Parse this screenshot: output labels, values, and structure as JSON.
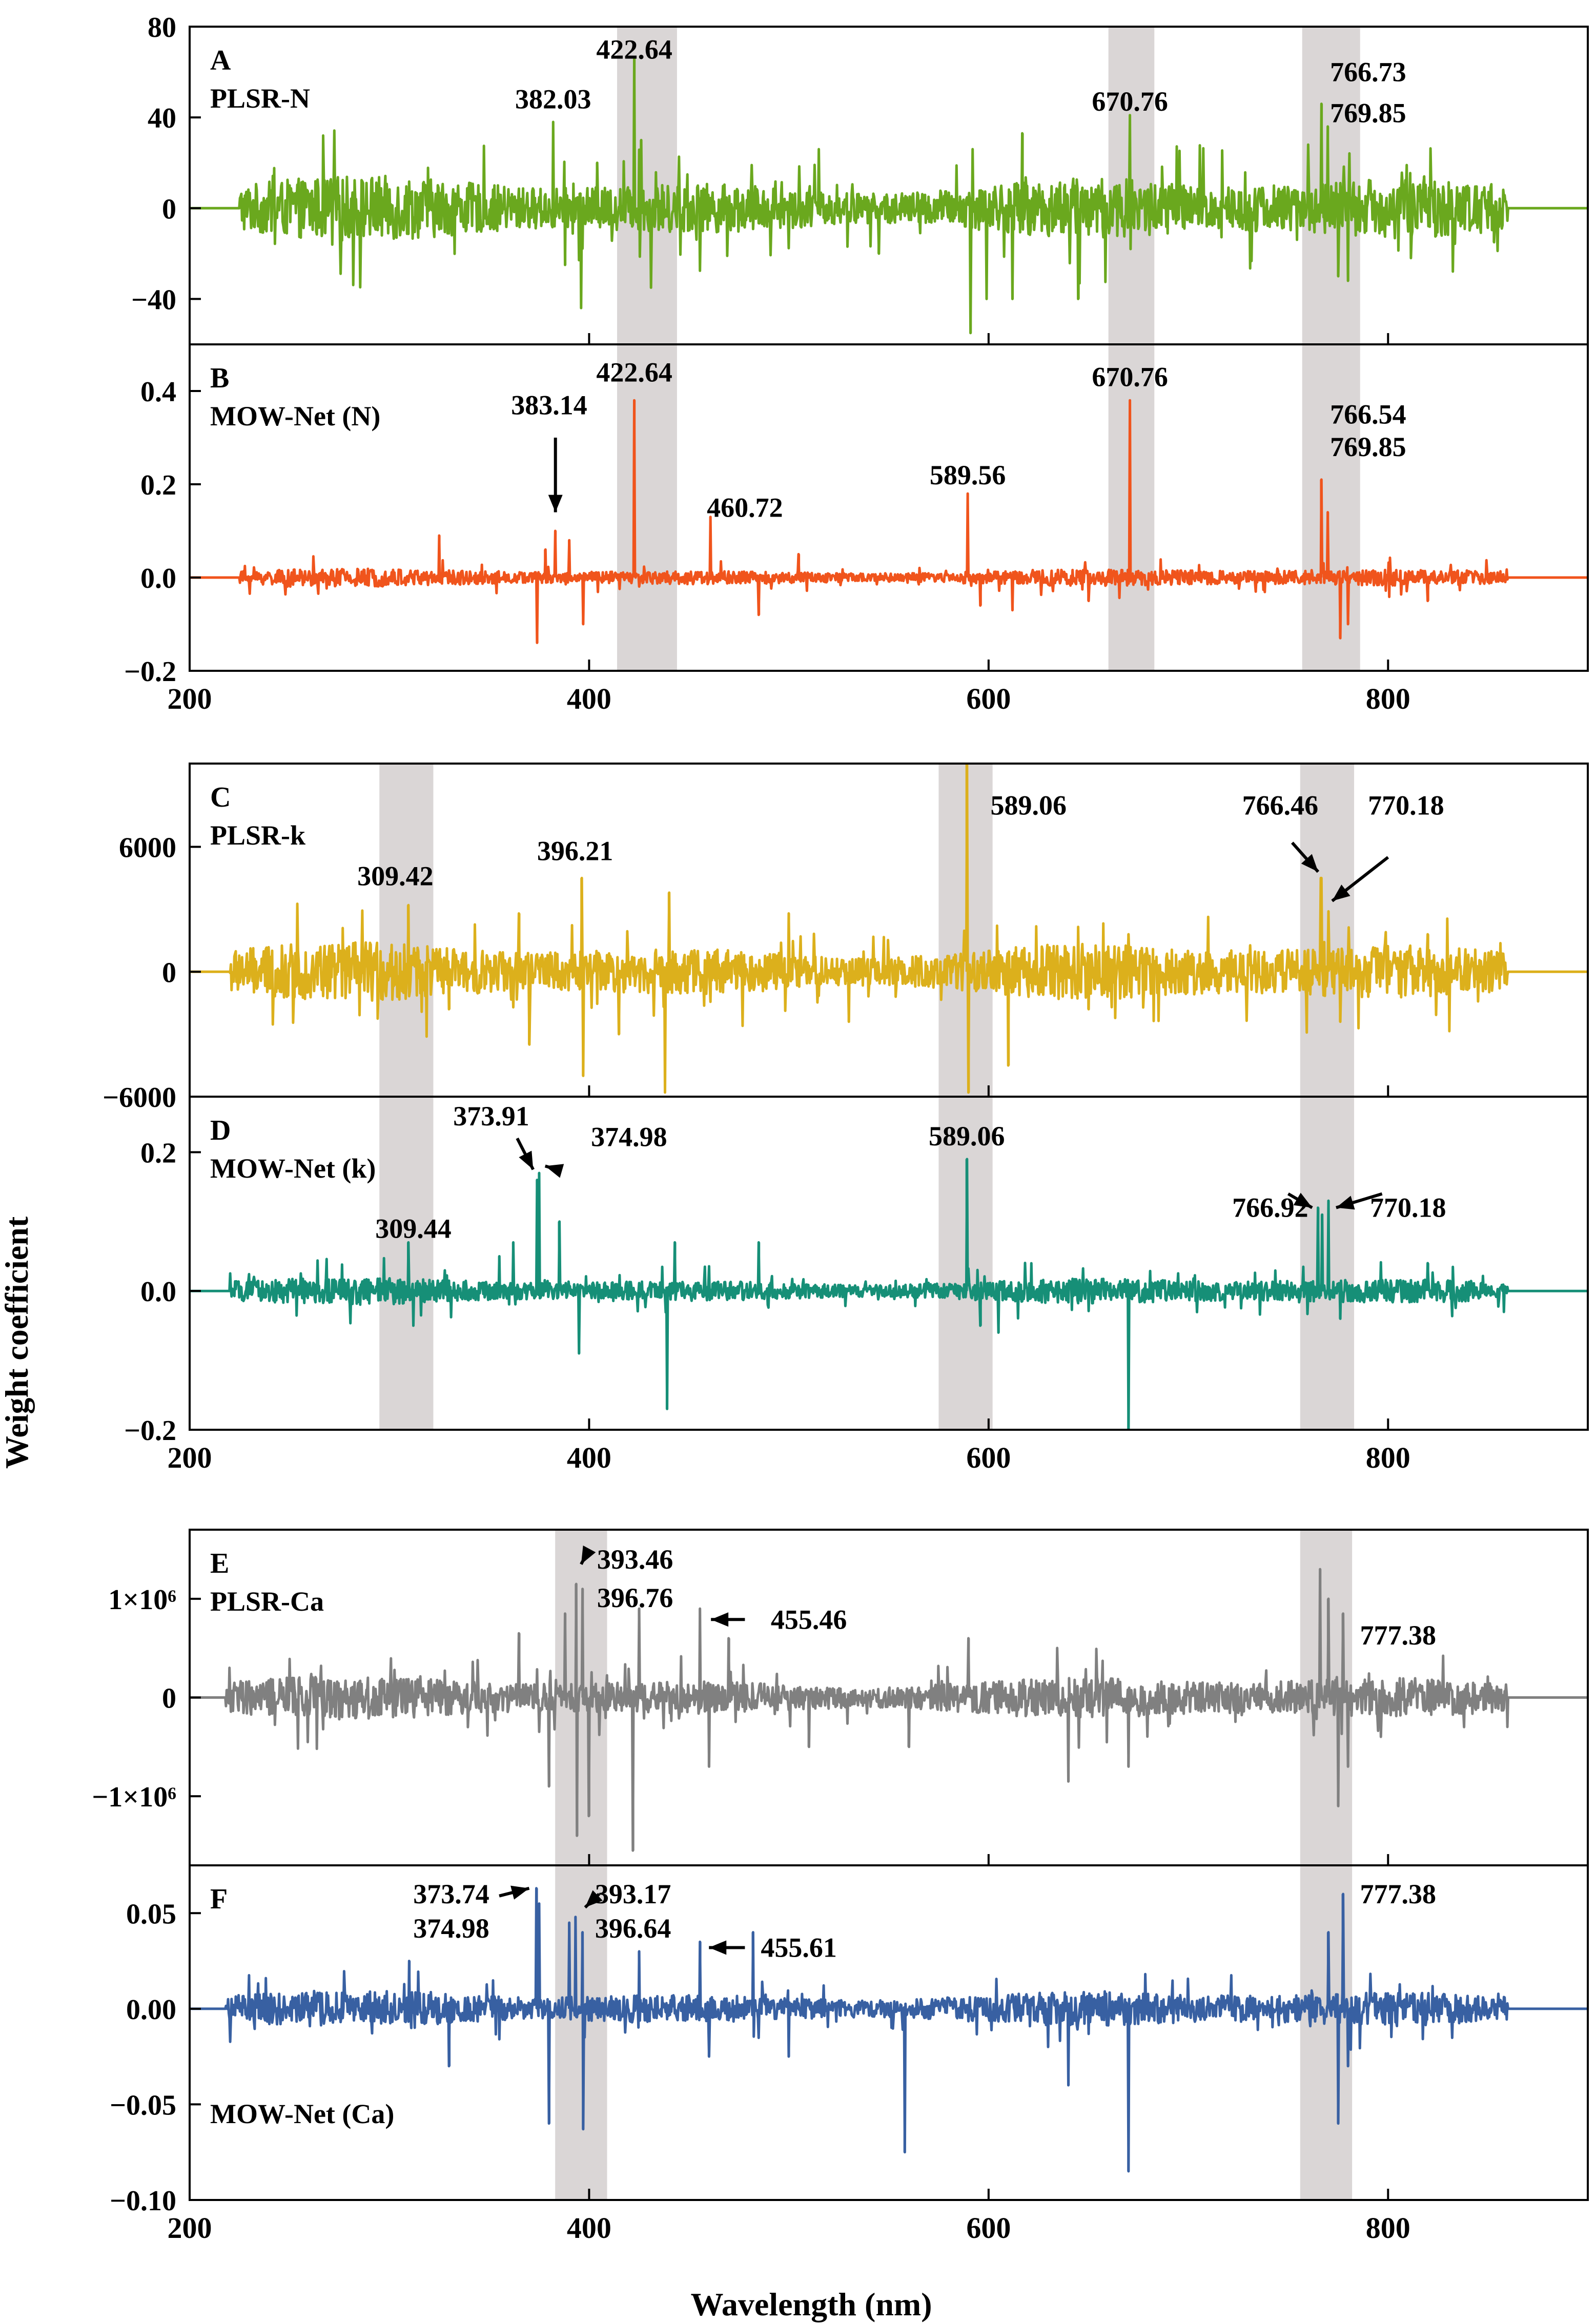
{
  "figure": {
    "ylabel": "Weight coefficient",
    "xlabel": "Wavelength (nm)"
  },
  "chart_data": [
    {
      "type": "line",
      "id": "A",
      "label": "A",
      "title": "PLSR-N",
      "color": "#6aa81e",
      "xlim": [
        200,
        900
      ],
      "ylim": [
        -60,
        80
      ],
      "yticks": [
        -40,
        0,
        40,
        80
      ],
      "ytick_labels": [
        "−40",
        "0",
        "40",
        "80"
      ],
      "xticks": [
        200,
        400,
        600,
        800
      ],
      "xtick_labels": [
        "200",
        "400",
        "600",
        "800"
      ],
      "show_x_tick_labels": false,
      "amp": 9,
      "flat_from": 225,
      "flat_to": 860,
      "peaks": [
        [
          382,
          38
        ],
        [
          388,
          -25
        ],
        [
          396,
          -44
        ],
        [
          404,
          20
        ],
        [
          422.64,
          66
        ],
        [
          426,
          30
        ],
        [
          431,
          -35
        ],
        [
          515,
          26
        ],
        [
          545,
          -20
        ],
        [
          592,
          26
        ],
        [
          591,
          -55
        ],
        [
          599,
          -40
        ],
        [
          612,
          -40
        ],
        [
          617,
          33
        ],
        [
          645,
          -40
        ],
        [
          670.76,
          41
        ],
        [
          760,
          28
        ],
        [
          766.73,
          46
        ],
        [
          769.85,
          36
        ],
        [
          775,
          -30
        ],
        [
          780,
          -32
        ],
        [
          818,
          14
        ],
        [
          853,
          -15
        ]
      ],
      "highlights": [
        [
          414,
          444
        ],
        [
          660,
          683
        ],
        [
          757,
          786
        ]
      ],
      "annotations": [
        {
          "text": "382.03",
          "x": 382,
          "y": 48
        },
        {
          "text": "422.64",
          "x": 422.64,
          "y": 70
        },
        {
          "text": "670.76",
          "x": 670.76,
          "y": 47
        },
        {
          "text": "766.73",
          "x": 790,
          "y": 60
        },
        {
          "text": "769.85",
          "x": 790,
          "y": 42
        }
      ],
      "arrows": []
    },
    {
      "type": "line",
      "id": "B",
      "label": "B",
      "title": "MOW-Net (N)",
      "color": "#f0541c",
      "xlim": [
        200,
        900
      ],
      "ylim": [
        -0.2,
        0.5
      ],
      "yticks": [
        -0.2,
        0.0,
        0.2,
        0.4
      ],
      "ytick_labels": [
        "−0.2",
        "0.0",
        "0.2",
        "0.4"
      ],
      "xticks": [
        200,
        400,
        600,
        800
      ],
      "xtick_labels": [
        "200",
        "400",
        "600",
        "800"
      ],
      "show_x_tick_labels": true,
      "amp": 0.012,
      "flat_from": 225,
      "flat_to": 860,
      "peaks": [
        [
          325,
          0.09
        ],
        [
          374,
          -0.14
        ],
        [
          378,
          0.06
        ],
        [
          383.14,
          0.1
        ],
        [
          390,
          0.08
        ],
        [
          397,
          -0.1
        ],
        [
          422.64,
          0.38
        ],
        [
          460.72,
          0.13
        ],
        [
          485,
          -0.08
        ],
        [
          505,
          0.05
        ],
        [
          589.56,
          0.18
        ],
        [
          596,
          -0.06
        ],
        [
          612,
          -0.07
        ],
        [
          650,
          -0.05
        ],
        [
          670.76,
          0.38
        ],
        [
          766.54,
          0.21
        ],
        [
          769.85,
          0.14
        ],
        [
          776,
          -0.13
        ],
        [
          780,
          -0.1
        ],
        [
          820,
          -0.05
        ]
      ],
      "highlights": [
        [
          414,
          444
        ],
        [
          660,
          683
        ],
        [
          757,
          786
        ]
      ],
      "annotations": [
        {
          "text": "383.14",
          "x": 380,
          "y": 0.37
        },
        {
          "text": "422.64",
          "x": 422.64,
          "y": 0.44
        },
        {
          "text": "460.72",
          "x": 478,
          "y": 0.15
        },
        {
          "text": "589.56",
          "x": 589.56,
          "y": 0.22
        },
        {
          "text": "670.76",
          "x": 670.76,
          "y": 0.43
        },
        {
          "text": "766.54",
          "x": 790,
          "y": 0.35
        },
        {
          "text": "769.85",
          "x": 790,
          "y": 0.28
        }
      ],
      "arrows": [
        [
          383.14,
          0.3,
          383.14,
          0.14
        ]
      ]
    },
    {
      "type": "line",
      "id": "C",
      "label": "C",
      "title": "PLSR-k",
      "color": "#dcb01c",
      "xlim": [
        200,
        900
      ],
      "ylim": [
        -6000,
        10000
      ],
      "yticks": [
        -6000,
        0,
        6000
      ],
      "ytick_labels": [
        "−6000",
        "0",
        "6000"
      ],
      "xticks": [
        200,
        400,
        600,
        800
      ],
      "xtick_labels": [
        "200",
        "400",
        "600",
        "800"
      ],
      "show_x_tick_labels": false,
      "amp": 900,
      "flat_from": 220,
      "flat_to": 860,
      "peaks": [
        [
          309.42,
          3200
        ],
        [
          330,
          -1800
        ],
        [
          365,
          2800
        ],
        [
          370,
          -3500
        ],
        [
          396.21,
          4500
        ],
        [
          397,
          -5000
        ],
        [
          415,
          -3000
        ],
        [
          440,
          3800
        ],
        [
          438,
          -5800
        ],
        [
          500,
          2800
        ],
        [
          530,
          -2400
        ],
        [
          589.06,
          10000
        ],
        [
          590,
          -5800
        ],
        [
          610,
          -4500
        ],
        [
          650,
          -1800
        ],
        [
          670,
          1800
        ],
        [
          766.46,
          4500
        ],
        [
          770.18,
          2900
        ],
        [
          776,
          -2400
        ],
        [
          820,
          1800
        ]
      ],
      "highlights": [
        [
          295,
          322
        ],
        [
          575,
          602
        ],
        [
          756,
          783
        ]
      ],
      "annotations": [
        {
          "text": "309.42",
          "x": 303,
          "y": 4600
        },
        {
          "text": "396.21",
          "x": 393,
          "y": 5800
        },
        {
          "text": "589.06",
          "x": 620,
          "y": 8000
        },
        {
          "text": "766.46",
          "x": 746,
          "y": 8000
        },
        {
          "text": "770.18",
          "x": 809,
          "y": 8000
        }
      ],
      "arrows": [
        [
          752,
          6200,
          765,
          4800
        ],
        [
          800,
          5500,
          772,
          3400
        ]
      ]
    },
    {
      "type": "line",
      "id": "D",
      "label": "D",
      "title": "MOW-Net (k)",
      "color": "#168f77",
      "xlim": [
        200,
        900
      ],
      "ylim": [
        -0.2,
        0.28
      ],
      "yticks": [
        -0.2,
        0.0,
        0.2
      ],
      "ytick_labels": [
        "−0.2",
        "0.0",
        "0.2"
      ],
      "xticks": [
        200,
        400,
        600,
        800
      ],
      "xtick_labels": [
        "200",
        "400",
        "600",
        "800"
      ],
      "show_x_tick_labels": true,
      "amp": 0.012,
      "flat_from": 220,
      "flat_to": 860,
      "peaks": [
        [
          309.44,
          0.07
        ],
        [
          312,
          -0.05
        ],
        [
          355,
          0.05
        ],
        [
          362,
          0.07
        ],
        [
          373.91,
          0.16
        ],
        [
          374.98,
          0.17
        ],
        [
          385,
          0.1
        ],
        [
          395,
          -0.09
        ],
        [
          439,
          -0.17
        ],
        [
          443,
          0.07
        ],
        [
          485,
          0.07
        ],
        [
          589.06,
          0.19
        ],
        [
          596,
          -0.05
        ],
        [
          605,
          -0.06
        ],
        [
          670,
          -0.21
        ],
        [
          765,
          0.12
        ],
        [
          766.92,
          0.11
        ],
        [
          770.18,
          0.13
        ],
        [
          776,
          -0.04
        ],
        [
          820,
          0.04
        ]
      ],
      "highlights": [
        [
          295,
          322
        ],
        [
          575,
          602
        ],
        [
          756,
          783
        ]
      ],
      "annotations": [
        {
          "text": "373.91",
          "x": 351,
          "y": 0.252
        },
        {
          "text": "374.98",
          "x": 420,
          "y": 0.222
        },
        {
          "text": "309.44",
          "x": 312,
          "y": 0.09
        },
        {
          "text": "589.06",
          "x": 589.06,
          "y": 0.223
        },
        {
          "text": "766.92",
          "x": 741,
          "y": 0.12
        },
        {
          "text": "770.18",
          "x": 810,
          "y": 0.12
        }
      ],
      "arrows": [
        [
          364,
          0.22,
          372,
          0.175
        ],
        [
          384,
          0.175,
          378,
          0.18
        ],
        [
          750,
          0.14,
          762,
          0.12
        ],
        [
          797,
          0.14,
          774,
          0.12
        ]
      ]
    },
    {
      "type": "line",
      "id": "E",
      "label": "E",
      "title": "PLSR-Ca",
      "color": "#808080",
      "xlim": [
        200,
        900
      ],
      "ylim": [
        -1700000,
        1700000
      ],
      "yticks": [
        -1000000,
        0,
        1000000
      ],
      "ytick_labels": [
        "−1×10⁶",
        "0",
        "1×10⁶"
      ],
      "xticks": [
        200,
        400,
        600,
        800
      ],
      "xtick_labels": [
        "200",
        "400",
        "600",
        "800"
      ],
      "show_x_tick_labels": false,
      "amp": 140000,
      "flat_from": 218,
      "flat_to": 860,
      "peaks": [
        [
          365,
          650000
        ],
        [
          380,
          -900000
        ],
        [
          388,
          850000
        ],
        [
          393.46,
          1150000
        ],
        [
          394,
          -1400000
        ],
        [
          396.76,
          1100000
        ],
        [
          400,
          -1200000
        ],
        [
          422,
          -1550000
        ],
        [
          425,
          900000
        ],
        [
          455.46,
          900000
        ],
        [
          460,
          -700000
        ],
        [
          470,
          600000
        ],
        [
          510,
          -500000
        ],
        [
          560,
          -500000
        ],
        [
          590,
          600000
        ],
        [
          640,
          -850000
        ],
        [
          670,
          -700000
        ],
        [
          766,
          1300000
        ],
        [
          770,
          1000000
        ],
        [
          777.38,
          850000
        ],
        [
          775,
          -1100000
        ],
        [
          780,
          -700000
        ]
      ],
      "highlights": [
        [
          383,
          409
        ],
        [
          756,
          782
        ]
      ],
      "annotations": [
        {
          "text": "393.46",
          "x": 423,
          "y": 1400000
        },
        {
          "text": "396.76",
          "x": 423,
          "y": 1010000
        },
        {
          "text": "455.46",
          "x": 510,
          "y": 790000
        },
        {
          "text": "777.38",
          "x": 805,
          "y": 630000
        }
      ],
      "arrows": [
        [
          400,
          1500000,
          396,
          1350000
        ],
        [
          478,
          790000,
          461,
          790000
        ]
      ]
    },
    {
      "type": "line",
      "id": "F",
      "label": "F",
      "title": "MOW-Net (Ca)",
      "color": "#3860a2",
      "xlim": [
        200,
        900
      ],
      "ylim": [
        -0.1,
        0.075
      ],
      "yticks": [
        -0.1,
        -0.05,
        0.0,
        0.05
      ],
      "ytick_labels": [
        "−0.10",
        "−0.05",
        "0.00",
        "0.05"
      ],
      "xticks": [
        200,
        400,
        600,
        800
      ],
      "xtick_labels": [
        "200",
        "400",
        "600",
        "800"
      ],
      "show_x_tick_labels": true,
      "amp": 0.006,
      "flat_from": 218,
      "flat_to": 860,
      "peaks": [
        [
          310,
          0.025
        ],
        [
          330,
          -0.03
        ],
        [
          373.74,
          0.063
        ],
        [
          374.98,
          0.055
        ],
        [
          380,
          -0.06
        ],
        [
          390,
          0.045
        ],
        [
          393.17,
          0.048
        ],
        [
          396.64,
          0.04
        ],
        [
          397,
          -0.063
        ],
        [
          425,
          0.03
        ],
        [
          455.61,
          0.035
        ],
        [
          460,
          -0.025
        ],
        [
          482,
          0.04
        ],
        [
          500,
          -0.025
        ],
        [
          558,
          -0.075
        ],
        [
          640,
          -0.04
        ],
        [
          670,
          -0.085
        ],
        [
          770,
          0.04
        ],
        [
          775,
          -0.06
        ],
        [
          777.38,
          0.06
        ],
        [
          780,
          -0.03
        ]
      ],
      "highlights": [
        [
          383,
          409
        ],
        [
          756,
          782
        ]
      ],
      "annotations": [
        {
          "text": "373.74",
          "x": 331,
          "y": 0.06
        },
        {
          "text": "374.98",
          "x": 331,
          "y": 0.042
        },
        {
          "text": "393.17",
          "x": 422,
          "y": 0.06
        },
        {
          "text": "396.64",
          "x": 422,
          "y": 0.042
        },
        {
          "text": "455.61",
          "x": 505,
          "y": 0.032
        },
        {
          "text": "777.38",
          "x": 805,
          "y": 0.06
        }
      ],
      "arrows": [
        [
          355,
          0.059,
          370,
          0.063
        ],
        [
          405,
          0.06,
          398,
          0.053
        ],
        [
          478,
          0.032,
          460,
          0.032
        ]
      ]
    }
  ]
}
